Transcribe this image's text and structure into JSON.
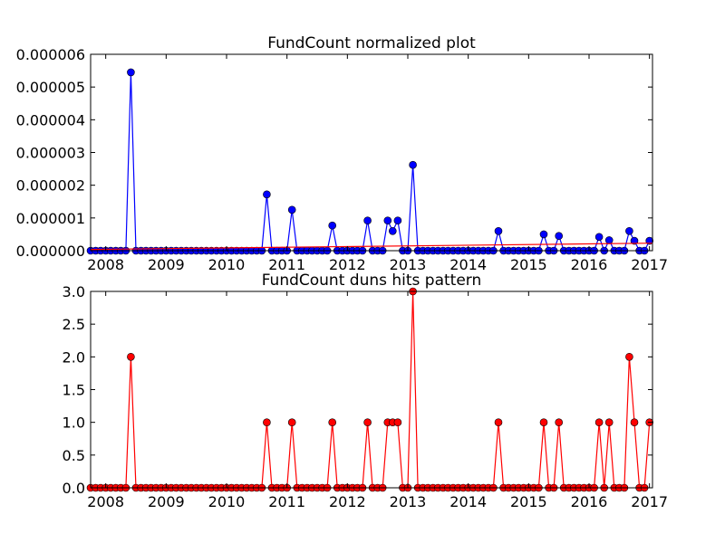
{
  "chart_data": [
    {
      "type": "line",
      "title": "FundCount normalized plot",
      "xlabel": "",
      "ylabel": "",
      "xlim": [
        2007.75,
        2017.05
      ],
      "ylim": [
        0,
        6e-06
      ],
      "yticks": [
        0,
        1e-06,
        2e-06,
        3e-06,
        4e-06,
        5e-06,
        6e-06
      ],
      "ytick_labels": [
        "0.000000",
        "0.000001",
        "0.000002",
        "0.000003",
        "0.000004",
        "0.000005",
        "0.000006"
      ],
      "xticks": [
        2008,
        2009,
        2010,
        2011,
        2012,
        2013,
        2014,
        2015,
        2016,
        2017
      ],
      "xtick_labels": [
        "2008",
        "2009",
        "2010",
        "2011",
        "2012",
        "2013",
        "2014",
        "2015",
        "2016",
        "2017"
      ],
      "series": [
        {
          "color": "#0000ff",
          "marker": "circle",
          "x": [
            2008.42,
            2010.67,
            2011.08,
            2011.75,
            2012.33,
            2012.67,
            2012.75,
            2012.83,
            2013.08,
            2014.5,
            2015.25,
            2015.5,
            2016.17,
            2016.33,
            2016.67,
            2016.75,
            2017.0
          ],
          "values": [
            5.45e-06,
            1.72e-06,
            1.25e-06,
            7.7e-07,
            9.2e-07,
            9.2e-07,
            6e-07,
            9.2e-07,
            2.62e-06,
            6e-07,
            5e-07,
            4.5e-07,
            4.2e-07,
            3.2e-07,
            6e-07,
            3e-07,
            3e-07
          ]
        },
        {
          "color": "#ff0000",
          "marker": "none",
          "x": [
            2007.75,
            2017.05
          ],
          "values": [
            4e-08,
            2.3e-07
          ]
        }
      ],
      "grid": false,
      "legend": "none"
    },
    {
      "type": "line",
      "title": "FundCount duns hits pattern",
      "xlabel": "",
      "ylabel": "",
      "xlim": [
        2007.75,
        2017.05
      ],
      "ylim": [
        0,
        3.0
      ],
      "yticks": [
        0,
        0.5,
        1.0,
        1.5,
        2.0,
        2.5,
        3.0
      ],
      "ytick_labels": [
        "0.0",
        "0.5",
        "1.0",
        "1.5",
        "2.0",
        "2.5",
        "3.0"
      ],
      "xticks": [
        2008,
        2009,
        2010,
        2011,
        2012,
        2013,
        2014,
        2015,
        2016,
        2017
      ],
      "xtick_labels": [
        "2008",
        "2009",
        "2010",
        "2011",
        "2012",
        "2013",
        "2014",
        "2015",
        "2016",
        "2017"
      ],
      "series": [
        {
          "color": "#ff0000",
          "marker": "circle",
          "x": [
            2008.42,
            2010.67,
            2011.08,
            2011.75,
            2012.33,
            2012.67,
            2012.75,
            2012.83,
            2013.08,
            2014.5,
            2015.25,
            2015.5,
            2016.17,
            2016.33,
            2016.67,
            2016.75,
            2017.0
          ],
          "values": [
            2,
            1,
            1,
            1,
            1,
            1,
            1,
            1,
            3,
            1,
            1,
            1,
            1,
            1,
            2,
            1,
            1
          ]
        }
      ],
      "grid": false,
      "legend": "none"
    }
  ]
}
